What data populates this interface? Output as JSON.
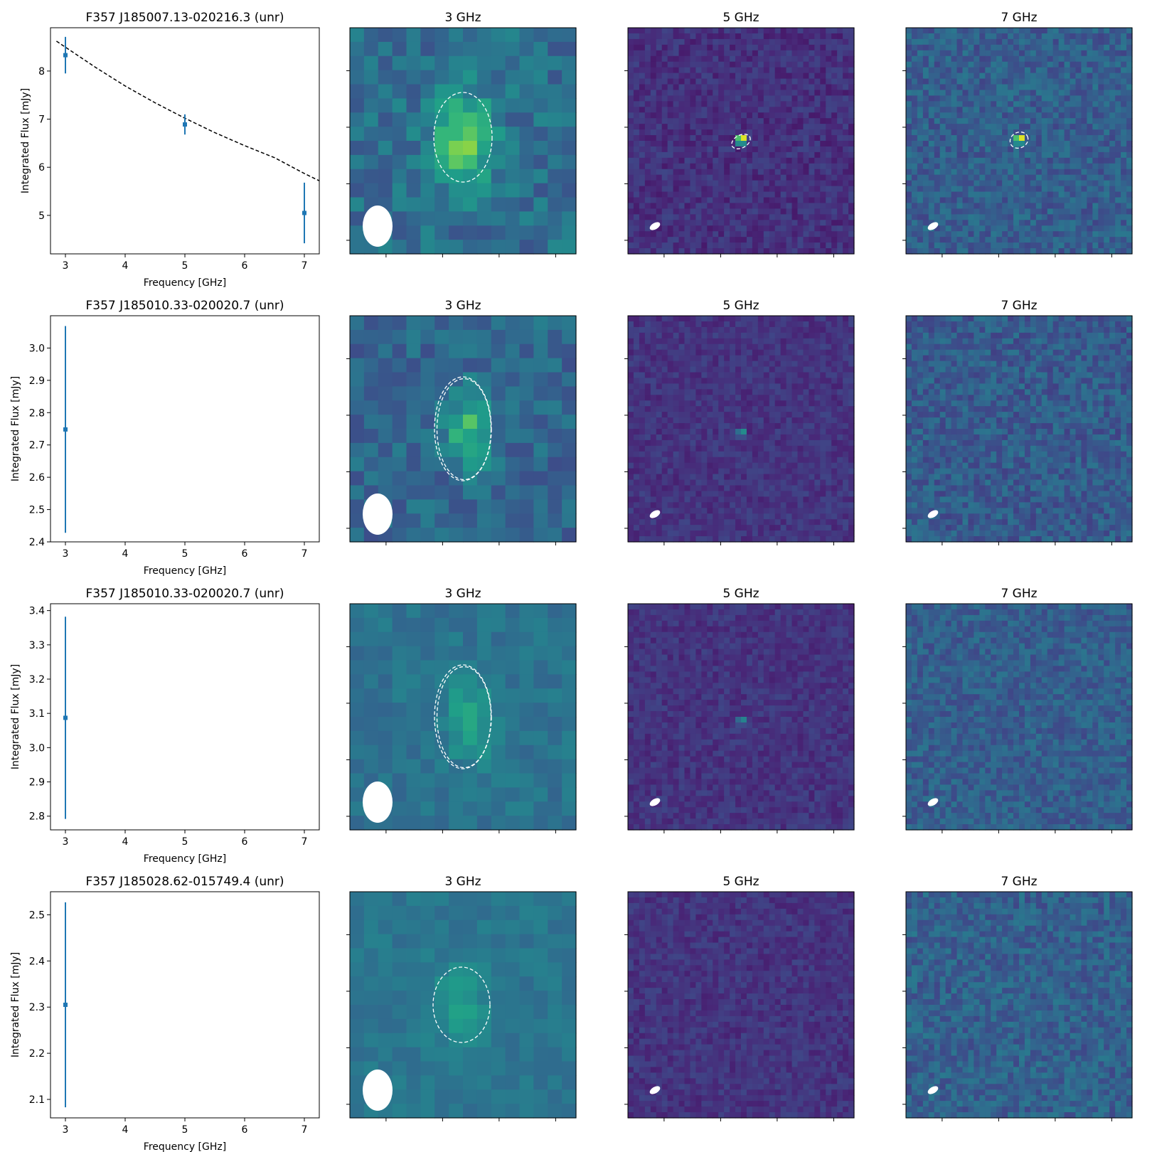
{
  "colors": {
    "point": "#1f77b4",
    "fit": "#000000",
    "overlay": "#ffffff",
    "colormap": "viridis"
  },
  "image_titles": [
    "3 GHz",
    "5 GHz",
    "7 GHz"
  ],
  "chart_data": [
    {
      "type": "scatter",
      "title": "F357 J185007.13-020216.3 (unr)",
      "xlabel": "Frequency [GHz]",
      "ylabel": "Integrated Flux [mJy]",
      "xlim": [
        2.75,
        7.25
      ],
      "ylim": [
        4.2,
        8.9
      ],
      "xticks": [
        3,
        4,
        5,
        6,
        7
      ],
      "yticks": [
        5,
        6,
        7,
        8
      ],
      "ytick_labels": [
        "5",
        "6",
        "7",
        "8"
      ],
      "points": [
        {
          "x": 3,
          "y": 8.33,
          "yerr": 0.38
        },
        {
          "x": 5,
          "y": 6.89,
          "yerr": 0.21
        },
        {
          "x": 7,
          "y": 5.05,
          "yerr": 0.63
        }
      ],
      "fit": {
        "style": "dashed",
        "x": [
          2.85,
          3.5,
          4.0,
          4.5,
          5.0,
          5.5,
          6.0,
          6.5,
          7.0,
          7.25
        ],
        "y": [
          8.62,
          8.08,
          7.69,
          7.34,
          7.02,
          6.72,
          6.45,
          6.2,
          5.87,
          5.72
        ]
      }
    },
    {
      "type": "scatter",
      "title": "F357 J185010.33-020020.7 (unr)",
      "xlabel": "Frequency [GHz]",
      "ylabel": "Integrated Flux [mJy]",
      "xlim": [
        2.75,
        7.25
      ],
      "ylim": [
        2.4,
        3.1
      ],
      "xticks": [
        3,
        4,
        5,
        6,
        7
      ],
      "yticks": [
        2.4,
        2.5,
        2.6,
        2.7,
        2.8,
        2.9,
        3.0
      ],
      "ytick_labels": [
        "2.4",
        "2.5",
        "2.6",
        "2.7",
        "2.8",
        "2.9",
        "3.0"
      ],
      "points": [
        {
          "x": 3,
          "y": 2.748,
          "yerr": 0.32
        }
      ]
    },
    {
      "type": "scatter",
      "title": "F357 J185010.33-020020.7 (unr)",
      "xlabel": "Frequency [GHz]",
      "ylabel": "Integrated Flux [mJy]",
      "xlim": [
        2.75,
        7.25
      ],
      "ylim": [
        2.76,
        3.42
      ],
      "xticks": [
        3,
        4,
        5,
        6,
        7
      ],
      "yticks": [
        2.8,
        2.9,
        3.0,
        3.1,
        3.2,
        3.3,
        3.4
      ],
      "ytick_labels": [
        "2.8",
        "2.9",
        "3.0",
        "3.1",
        "3.2",
        "3.3",
        "3.4"
      ],
      "points": [
        {
          "x": 3,
          "y": 3.087,
          "yerr": 0.295
        }
      ]
    },
    {
      "type": "scatter",
      "title": "F357 J185028.62-015749.4 (unr)",
      "xlabel": "Frequency [GHz]",
      "ylabel": "Integrated Flux [mJy]",
      "xlim": [
        2.75,
        7.25
      ],
      "ylim": [
        2.06,
        2.55
      ],
      "xticks": [
        3,
        4,
        5,
        6,
        7
      ],
      "yticks": [
        2.1,
        2.2,
        2.3,
        2.4,
        2.5
      ],
      "ytick_labels": [
        "2.1",
        "2.2",
        "2.3",
        "2.4",
        "2.5"
      ],
      "points": [
        {
          "x": 3,
          "y": 2.305,
          "yerr": 0.222
        }
      ]
    }
  ]
}
